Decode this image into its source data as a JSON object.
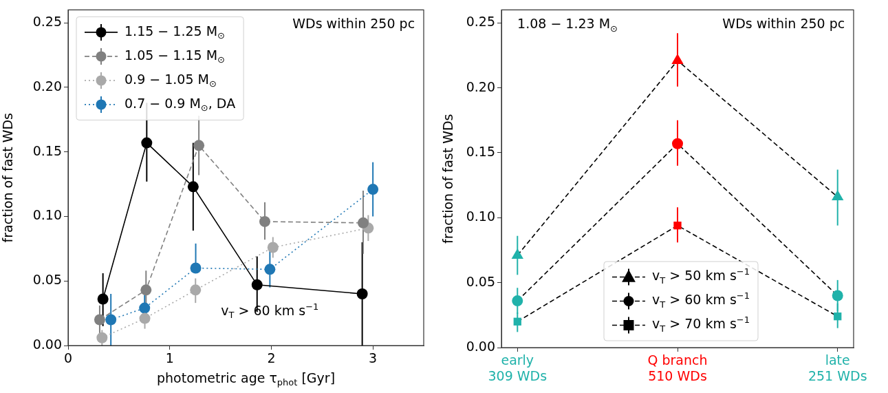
{
  "chart_data": [
    {
      "type": "line",
      "xlabel": "photometric age τ$_{phot}$ [Gyr]",
      "ylabel": "fraction of fast WDs",
      "xlim": [
        0,
        3.5
      ],
      "xticks": [
        0,
        1,
        2,
        3
      ],
      "ylim": [
        0,
        0.26
      ],
      "yticks": [
        {
          "value": 0,
          "label": "0.00"
        },
        {
          "value": 0.05,
          "label": "0.05"
        },
        {
          "value": 0.1,
          "label": "0.10"
        },
        {
          "value": 0.15,
          "label": "0.15"
        },
        {
          "value": 0.2,
          "label": "0.20"
        },
        {
          "value": 0.25,
          "label": "0.25"
        }
      ],
      "grid": false,
      "legend": "top left",
      "marker": "circle",
      "annotations": [
        "WDs within 250 pc",
        "v$_{T}$ > 60 km s$^{−1}$"
      ],
      "series": [
        {
          "name": "1.15 − 1.25 M$_{⊙}$",
          "color": "#000000",
          "line_style": "solid",
          "x": [
            0.343,
            0.774,
            1.231,
            1.86,
            2.895
          ],
          "values": [
            0.036,
            0.157,
            0.123,
            0.047,
            0.04
          ],
          "errors": [
            [
              0.015,
              0.056
            ],
            [
              0.127,
              0.188
            ],
            [
              0.089,
              0.157
            ],
            [
              0.026,
              0.069
            ],
            [
              0,
              0.08
            ]
          ]
        },
        {
          "name": "1.05 − 1.15 M$_{⊙}$",
          "color": "#808080",
          "line_style": "dashed",
          "x": [
            0.311,
            0.767,
            1.287,
            1.936,
            2.904
          ],
          "values": [
            0.02,
            0.043,
            0.155,
            0.096,
            0.095
          ],
          "errors": [
            [
              0.008,
              0.031
            ],
            [
              0.027,
              0.058
            ],
            [
              0.132,
              0.178
            ],
            [
              0.082,
              0.111
            ],
            [
              0.071,
              0.12
            ]
          ]
        },
        {
          "name": "0.9 − 1.05 M$_{⊙}$",
          "color": "#a9a9a9",
          "line_style": "dotted",
          "x": [
            0.334,
            0.755,
            1.254,
            2.016,
            2.954
          ],
          "values": [
            0.006,
            0.021,
            0.043,
            0.076,
            0.091
          ],
          "errors": [
            [
              0,
              0.012
            ],
            [
              0.013,
              0.027
            ],
            [
              0.033,
              0.052
            ],
            [
              0.068,
              0.084
            ],
            [
              0.081,
              0.101
            ]
          ]
        },
        {
          "name": "0.7 − 0.9 M$_{⊙}$, DA",
          "color": "#1f77b4",
          "line_style": "dotted",
          "x": [
            0.421,
            0.753,
            1.256,
            1.986,
            3.0
          ],
          "values": [
            0.02,
            0.029,
            0.06,
            0.059,
            0.121
          ],
          "errors": [
            [
              0,
              0.04
            ],
            [
              0.029,
              0.039
            ],
            [
              0.06,
              0.079
            ],
            [
              0.045,
              0.073
            ],
            [
              0.1,
              0.142
            ]
          ]
        }
      ]
    },
    {
      "type": "line",
      "ylabel": "fraction of fast WDs",
      "categories": [
        "early\n309 WDs",
        "Q branch\n510 WDs",
        "late\n251 WDs"
      ],
      "ylim": [
        0,
        0.26
      ],
      "yticks": [
        {
          "value": 0,
          "label": "0.00"
        },
        {
          "value": 0.05,
          "label": "0.05"
        },
        {
          "value": 0.1,
          "label": "0.10"
        },
        {
          "value": 0.15,
          "label": "0.15"
        },
        {
          "value": 0.2,
          "label": "0.20"
        },
        {
          "value": 0.25,
          "label": "0.25"
        }
      ],
      "grid": false,
      "legend": "bottom",
      "line_style": "dashed",
      "annotations": [
        "1.08 − 1.23 M$_{⊙}$",
        "WDs within 250 pc"
      ],
      "series": [
        {
          "name": "v$_{T}$ > 50 km s$^{−1}$",
          "color": "#000000",
          "marker": "triangle",
          "colors": [
            "#20b2aa",
            "#ff0000",
            "#20b2aa"
          ],
          "values": [
            0.071,
            0.221,
            0.116
          ],
          "errors": [
            [
              0.056,
              0.086
            ],
            [
              0.201,
              0.242
            ],
            [
              0.094,
              0.137
            ]
          ]
        },
        {
          "name": "v$_{T}$ > 60 km s$^{−1}$",
          "color": "#000000",
          "marker": "circle",
          "colors": [
            "#20b2aa",
            "#ff0000",
            "#20b2aa"
          ],
          "values": [
            0.036,
            0.157,
            0.04
          ],
          "errors": [
            [
              0.026,
              0.046
            ],
            [
              0.14,
              0.175
            ],
            [
              0.028,
              0.052
            ]
          ]
        },
        {
          "name": "v$_{T}$ > 70 km s$^{−1}$",
          "color": "#000000",
          "marker": "square",
          "colors": [
            "#20b2aa",
            "#ff0000",
            "#20b2aa"
          ],
          "values": [
            0.02,
            0.094,
            0.024
          ],
          "errors": [
            [
              0.012,
              0.027
            ],
            [
              0.081,
              0.108
            ],
            [
              0.015,
              0.034
            ]
          ]
        }
      ]
    }
  ]
}
